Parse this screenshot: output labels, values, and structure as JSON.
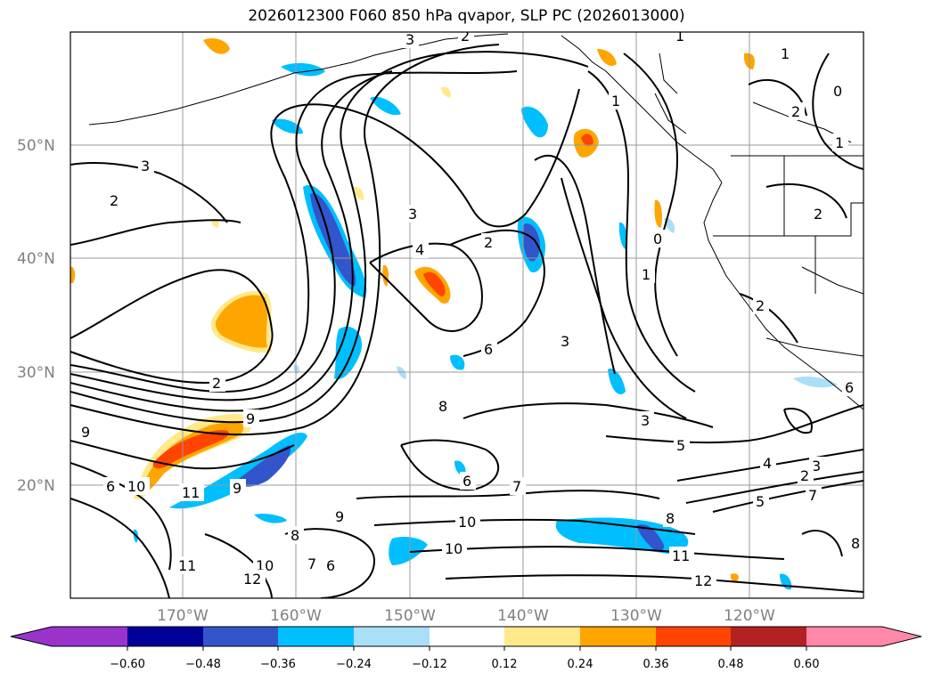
{
  "title": "2026012300 F060 850 hPa qvapor, SLP PC (2026013000)",
  "lat_labels": [
    "50°N",
    "40°N",
    "30°N",
    "20°N"
  ],
  "lon_labels": [
    "170°W",
    "160°W",
    "150°W",
    "140°W",
    "130°W",
    "120°W"
  ],
  "colorbar": {
    "ticks": [
      "−0.60",
      "−0.48",
      "−0.36",
      "−0.24",
      "−0.12",
      "0.12",
      "0.24",
      "0.36",
      "0.48",
      "0.60"
    ],
    "colors": [
      "#9933cc",
      "#000099",
      "#3355cc",
      "#00bfff",
      "#aadff8",
      "#ffffff",
      "#ffe98a",
      "#ffa500",
      "#ff4500",
      "#b22222",
      "#ff88aa"
    ]
  },
  "contour_labels": [
    "2",
    "3",
    "2",
    "1",
    "1",
    "0",
    "1",
    "2",
    "1",
    "3",
    "2",
    "3",
    "4",
    "2",
    "6",
    "3",
    "1",
    "0",
    "2",
    "6",
    "3",
    "2",
    "8",
    "9",
    "5",
    "3",
    "4",
    "2",
    "5",
    "7",
    "8",
    "6",
    "9",
    "11",
    "10",
    "6",
    "7",
    "9",
    "8",
    "10",
    "10",
    "8",
    "11",
    "12",
    "11",
    "10",
    "12",
    "6",
    "7",
    "9"
  ]
}
